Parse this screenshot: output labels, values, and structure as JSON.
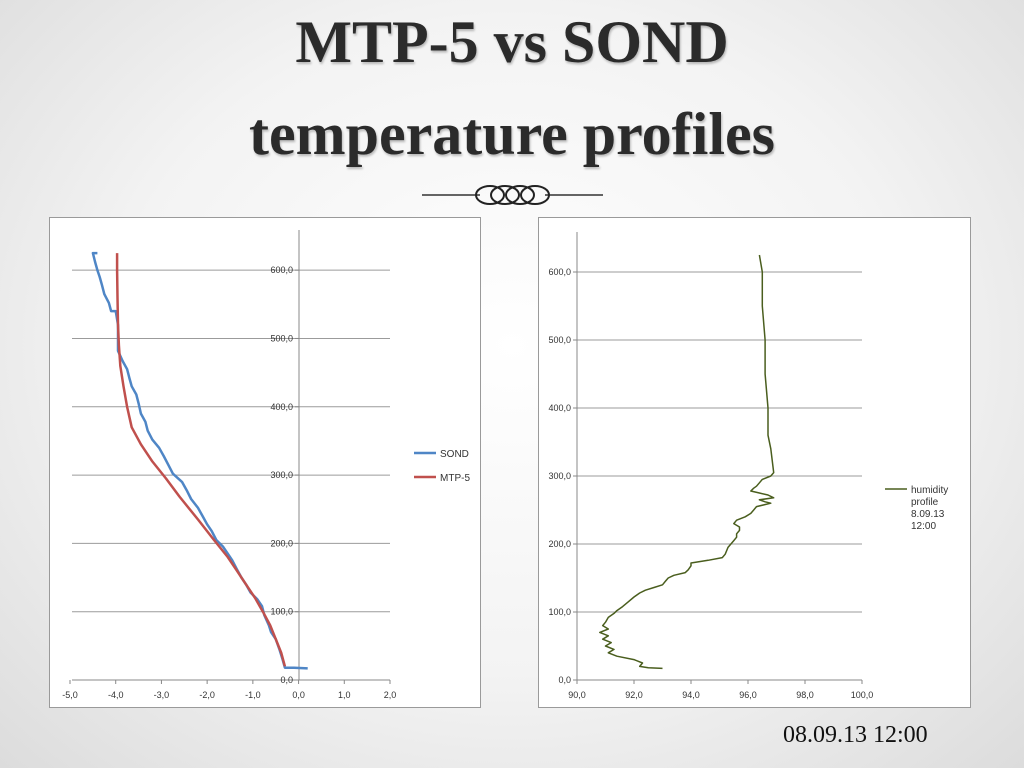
{
  "slide": {
    "title_line1": "MTP-5 vs SOND",
    "title_line2": "temperature profiles",
    "footer_date": "08.09.13 12:00"
  },
  "chart_data": [
    {
      "type": "line",
      "title": "",
      "xlabel": "",
      "ylabel": "",
      "xlim": [
        -5,
        2
      ],
      "ylim": [
        0,
        650
      ],
      "x_ticks": [
        "-5,0",
        "-4,0",
        "-3,0",
        "-2,0",
        "-1,0",
        "0,0",
        "1,0",
        "2,0"
      ],
      "y_ticks": [
        "0,0",
        "100,0",
        "200,0",
        "300,0",
        "400,0",
        "500,0",
        "600,0"
      ],
      "grid": true,
      "legend": "right",
      "series": [
        {
          "name": "SOND",
          "color": "#4f86c6",
          "points": [
            [
              0.2,
              17
            ],
            [
              -0.1,
              18
            ],
            [
              -0.3,
              18
            ],
            [
              -0.35,
              30
            ],
            [
              -0.42,
              45
            ],
            [
              -0.5,
              60
            ],
            [
              -0.6,
              70
            ],
            [
              -0.65,
              80
            ],
            [
              -0.75,
              95
            ],
            [
              -0.8,
              108
            ],
            [
              -0.9,
              118
            ],
            [
              -1.05,
              128
            ],
            [
              -1.15,
              140
            ],
            [
              -1.25,
              150
            ],
            [
              -1.35,
              162
            ],
            [
              -1.45,
              175
            ],
            [
              -1.55,
              185
            ],
            [
              -1.65,
              195
            ],
            [
              -1.8,
              205
            ],
            [
              -1.9,
              218
            ],
            [
              -2.0,
              228
            ],
            [
              -2.1,
              240
            ],
            [
              -2.2,
              252
            ],
            [
              -2.35,
              265
            ],
            [
              -2.45,
              278
            ],
            [
              -2.55,
              290
            ],
            [
              -2.75,
              302
            ],
            [
              -2.85,
              315
            ],
            [
              -2.95,
              328
            ],
            [
              -3.05,
              340
            ],
            [
              -3.2,
              352
            ],
            [
              -3.3,
              365
            ],
            [
              -3.35,
              378
            ],
            [
              -3.45,
              390
            ],
            [
              -3.5,
              405
            ],
            [
              -3.55,
              418
            ],
            [
              -3.65,
              430
            ],
            [
              -3.7,
              442
            ],
            [
              -3.75,
              455
            ],
            [
              -3.85,
              467
            ],
            [
              -3.95,
              482
            ],
            [
              -3.95,
              500
            ],
            [
              -3.95,
              520
            ],
            [
              -4.0,
              540
            ],
            [
              -4.1,
              540
            ],
            [
              -4.15,
              552
            ],
            [
              -4.25,
              565
            ],
            [
              -4.3,
              578
            ],
            [
              -4.35,
              590
            ],
            [
              -4.4,
              600
            ],
            [
              -4.45,
              612
            ],
            [
              -4.5,
              625
            ],
            [
              -4.4,
              625
            ]
          ]
        },
        {
          "name": "MTP-5",
          "color": "#c0504d",
          "points": [
            [
              -0.3,
              20
            ],
            [
              -0.38,
              40
            ],
            [
              -0.5,
              60
            ],
            [
              -0.62,
              80
            ],
            [
              -0.78,
              100
            ],
            [
              -0.95,
              120
            ],
            [
              -1.15,
              140
            ],
            [
              -1.35,
              160
            ],
            [
              -1.55,
              180
            ],
            [
              -1.85,
              205
            ],
            [
              -2.2,
              235
            ],
            [
              -2.6,
              268
            ],
            [
              -2.9,
              295
            ],
            [
              -3.2,
              320
            ],
            [
              -3.45,
              345
            ],
            [
              -3.65,
              370
            ],
            [
              -3.75,
              400
            ],
            [
              -3.83,
              430
            ],
            [
              -3.9,
              460
            ],
            [
              -3.93,
              490
            ],
            [
              -3.95,
              520
            ],
            [
              -3.96,
              560
            ],
            [
              -3.97,
              600
            ],
            [
              -3.97,
              625
            ]
          ]
        }
      ]
    },
    {
      "type": "line",
      "title": "",
      "xlabel": "",
      "ylabel": "",
      "xlim": [
        90,
        100
      ],
      "ylim": [
        0,
        650
      ],
      "x_ticks": [
        "90,0",
        "92,0",
        "94,0",
        "96,0",
        "98,0",
        "100,0"
      ],
      "y_ticks": [
        "0,0",
        "100,0",
        "200,0",
        "300,0",
        "400,0",
        "500,0",
        "600,0"
      ],
      "grid": true,
      "legend": "right",
      "series": [
        {
          "name": "humidity profile 8.09.13 12:00",
          "legend_lines": [
            "humidity",
            "profile",
            "8.09.13",
            "12:00"
          ],
          "color": "#4a5e1e",
          "points": [
            [
              93.0,
              17
            ],
            [
              92.5,
              18
            ],
            [
              92.2,
              20
            ],
            [
              92.3,
              25
            ],
            [
              92.0,
              30
            ],
            [
              91.4,
              35
            ],
            [
              91.1,
              40
            ],
            [
              91.3,
              45
            ],
            [
              91.0,
              50
            ],
            [
              91.2,
              55
            ],
            [
              90.9,
              60
            ],
            [
              91.1,
              65
            ],
            [
              90.8,
              70
            ],
            [
              91.1,
              75
            ],
            [
              90.9,
              80
            ],
            [
              91.0,
              85
            ],
            [
              91.1,
              92
            ],
            [
              91.3,
              98
            ],
            [
              91.4,
              102
            ],
            [
              91.6,
              108
            ],
            [
              91.8,
              115
            ],
            [
              92.0,
              122
            ],
            [
              92.2,
              128
            ],
            [
              92.4,
              132
            ],
            [
              92.7,
              136
            ],
            [
              93.0,
              140
            ],
            [
              93.1,
              145
            ],
            [
              93.2,
              150
            ],
            [
              93.4,
              154
            ],
            [
              93.8,
              158
            ],
            [
              93.9,
              162
            ],
            [
              94.0,
              168
            ],
            [
              94.0,
              172
            ],
            [
              94.6,
              176
            ],
            [
              95.1,
              180
            ],
            [
              95.2,
              185
            ],
            [
              95.3,
              195
            ],
            [
              95.4,
              200
            ],
            [
              95.5,
              205
            ],
            [
              95.6,
              210
            ],
            [
              95.6,
              215
            ],
            [
              95.7,
              220
            ],
            [
              95.7,
              225
            ],
            [
              95.5,
              230
            ],
            [
              95.6,
              235
            ],
            [
              95.9,
              240
            ],
            [
              96.1,
              245
            ],
            [
              96.2,
              250
            ],
            [
              96.3,
              255
            ],
            [
              96.8,
              260
            ],
            [
              96.6,
              262
            ],
            [
              96.4,
              265
            ],
            [
              96.9,
              268
            ],
            [
              96.7,
              272
            ],
            [
              96.4,
              275
            ],
            [
              96.1,
              278
            ],
            [
              96.2,
              282
            ],
            [
              96.3,
              285
            ],
            [
              96.4,
              290
            ],
            [
              96.5,
              295
            ],
            [
              96.8,
              300
            ],
            [
              96.9,
              305
            ],
            [
              96.8,
              340
            ],
            [
              96.7,
              360
            ],
            [
              96.7,
              400
            ],
            [
              96.6,
              450
            ],
            [
              96.6,
              500
            ],
            [
              96.5,
              550
            ],
            [
              96.5,
              600
            ],
            [
              96.4,
              625
            ]
          ]
        }
      ]
    }
  ]
}
